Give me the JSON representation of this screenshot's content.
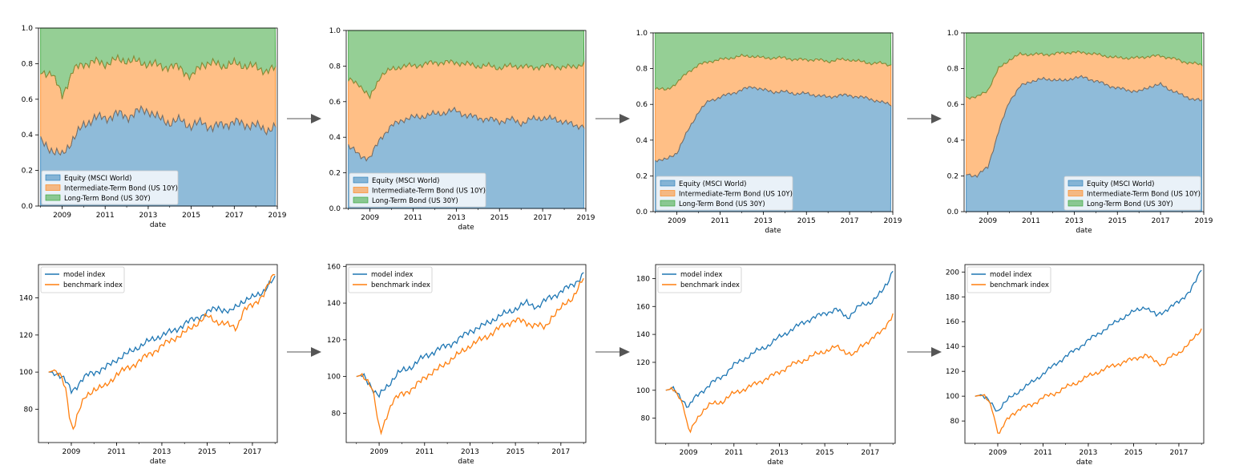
{
  "area_legend": [
    "Equity (MSCI World)",
    "Intermediate-Term Bond (US 10Y)",
    "Long-Term Bond (US 30Y)"
  ],
  "line_legend": [
    "model index",
    "benchmark index"
  ],
  "xlabel": "date",
  "colors": {
    "equity": "#1f77b4",
    "bond10": "#ff7f0e",
    "bond30": "#2ca02c",
    "model": "#1f77b4",
    "benchmark": "#ff7f0e",
    "arrow": "#555555"
  },
  "chart_data": [
    {
      "type": "area",
      "stacked": true,
      "legend_position": "lower-left",
      "x_ticks": [
        "2009",
        "2011",
        "2013",
        "2015",
        "2017",
        "2019"
      ],
      "y_ticks": [
        "0.0",
        "0.2",
        "0.4",
        "0.6",
        "0.8",
        "1.0"
      ],
      "xlim": [
        2007.9,
        2019.0
      ],
      "ylim": [
        0,
        1
      ],
      "series_anchors": {
        "x": [
          2008.0,
          2008.5,
          2009.0,
          2009.5,
          2010.0,
          2010.5,
          2011.0,
          2011.5,
          2012.0,
          2012.5,
          2013.0,
          2013.5,
          2014.0,
          2014.5,
          2015.0,
          2015.5,
          2016.0,
          2016.5,
          2017.0,
          2017.5,
          2018.0,
          2018.5,
          2018.9
        ],
        "equity": [
          0.36,
          0.32,
          0.28,
          0.38,
          0.45,
          0.5,
          0.49,
          0.52,
          0.5,
          0.53,
          0.54,
          0.49,
          0.47,
          0.48,
          0.45,
          0.47,
          0.44,
          0.46,
          0.47,
          0.46,
          0.45,
          0.43,
          0.44
        ],
        "equity_plus_bond10": [
          0.75,
          0.75,
          0.62,
          0.76,
          0.8,
          0.81,
          0.8,
          0.82,
          0.82,
          0.81,
          0.8,
          0.79,
          0.78,
          0.78,
          0.72,
          0.8,
          0.8,
          0.79,
          0.8,
          0.79,
          0.78,
          0.76,
          0.77
        ]
      }
    },
    {
      "type": "area",
      "stacked": true,
      "legend_position": "lower-left",
      "x_ticks": [
        "2009",
        "2011",
        "2013",
        "2015",
        "2017",
        "2019"
      ],
      "y_ticks": [
        "0.0",
        "0.2",
        "0.4",
        "0.6",
        "0.8",
        "1.0"
      ],
      "xlim": [
        2007.9,
        2019.0
      ],
      "ylim": [
        0,
        1
      ],
      "series_anchors": {
        "x": [
          2008.0,
          2008.5,
          2009.0,
          2009.5,
          2010.0,
          2010.5,
          2011.0,
          2011.5,
          2012.0,
          2012.5,
          2013.0,
          2013.5,
          2014.0,
          2014.5,
          2015.0,
          2015.5,
          2016.0,
          2016.5,
          2017.0,
          2017.5,
          2018.0,
          2018.5,
          2018.9
        ],
        "equity": [
          0.35,
          0.3,
          0.28,
          0.4,
          0.46,
          0.5,
          0.51,
          0.52,
          0.53,
          0.54,
          0.55,
          0.52,
          0.51,
          0.5,
          0.49,
          0.5,
          0.48,
          0.5,
          0.51,
          0.5,
          0.49,
          0.46,
          0.47
        ],
        "equity_plus_bond10": [
          0.72,
          0.7,
          0.62,
          0.75,
          0.78,
          0.8,
          0.8,
          0.81,
          0.82,
          0.82,
          0.82,
          0.81,
          0.8,
          0.8,
          0.79,
          0.8,
          0.8,
          0.79,
          0.8,
          0.8,
          0.79,
          0.8,
          0.81
        ]
      }
    },
    {
      "type": "area",
      "stacked": true,
      "legend_position": "lower-left",
      "x_ticks": [
        "2009",
        "2011",
        "2013",
        "2015",
        "2017",
        "2019"
      ],
      "y_ticks": [
        "0.0",
        "0.2",
        "0.4",
        "0.6",
        "0.8",
        "1.0"
      ],
      "xlim": [
        2007.9,
        2019.0
      ],
      "ylim": [
        0,
        1
      ],
      "series_anchors": {
        "x": [
          2008.0,
          2008.5,
          2009.0,
          2009.5,
          2010.0,
          2010.5,
          2011.0,
          2011.5,
          2012.0,
          2012.5,
          2013.0,
          2013.5,
          2014.0,
          2014.5,
          2015.0,
          2015.5,
          2016.0,
          2016.5,
          2017.0,
          2017.5,
          2018.0,
          2018.5,
          2018.9
        ],
        "equity": [
          0.29,
          0.29,
          0.33,
          0.45,
          0.56,
          0.62,
          0.64,
          0.66,
          0.68,
          0.7,
          0.68,
          0.67,
          0.67,
          0.66,
          0.66,
          0.65,
          0.64,
          0.65,
          0.65,
          0.64,
          0.63,
          0.61,
          0.6
        ],
        "equity_plus_bond10": [
          0.69,
          0.68,
          0.72,
          0.78,
          0.82,
          0.84,
          0.85,
          0.86,
          0.87,
          0.87,
          0.86,
          0.86,
          0.86,
          0.85,
          0.85,
          0.85,
          0.84,
          0.85,
          0.85,
          0.84,
          0.83,
          0.83,
          0.82
        ]
      }
    },
    {
      "type": "area",
      "stacked": true,
      "legend_position": "lower-right",
      "x_ticks": [
        "2009",
        "2011",
        "2013",
        "2015",
        "2017",
        "2019"
      ],
      "y_ticks": [
        "0.0",
        "0.2",
        "0.4",
        "0.6",
        "0.8",
        "1.0"
      ],
      "xlim": [
        2007.9,
        2019.0
      ],
      "ylim": [
        0,
        1
      ],
      "series_anchors": {
        "x": [
          2008.0,
          2008.5,
          2009.0,
          2009.5,
          2010.0,
          2010.5,
          2011.0,
          2011.5,
          2012.0,
          2012.5,
          2013.0,
          2013.5,
          2014.0,
          2014.5,
          2015.0,
          2015.5,
          2016.0,
          2016.5,
          2017.0,
          2017.5,
          2018.0,
          2018.5,
          2018.9
        ],
        "equity": [
          0.21,
          0.2,
          0.25,
          0.45,
          0.62,
          0.7,
          0.73,
          0.74,
          0.74,
          0.73,
          0.75,
          0.75,
          0.73,
          0.71,
          0.69,
          0.68,
          0.67,
          0.7,
          0.71,
          0.68,
          0.65,
          0.63,
          0.62
        ],
        "equity_plus_bond10": [
          0.64,
          0.64,
          0.68,
          0.8,
          0.85,
          0.88,
          0.88,
          0.88,
          0.88,
          0.89,
          0.89,
          0.89,
          0.88,
          0.87,
          0.86,
          0.86,
          0.86,
          0.87,
          0.87,
          0.86,
          0.84,
          0.83,
          0.82
        ]
      }
    },
    {
      "type": "line",
      "legend_position": "upper-left",
      "x_ticks": [
        "2009",
        "2011",
        "2013",
        "2015",
        "2017"
      ],
      "y_ticks": [
        "80",
        "100",
        "120",
        "140"
      ],
      "xlim": [
        2007.55,
        2018.1
      ],
      "ylim": [
        62,
        158
      ],
      "series": [
        {
          "name": "model index",
          "x": [
            2008.0,
            2008.3,
            2008.6,
            2008.8,
            2009.0,
            2009.2,
            2009.5,
            2009.8,
            2010.0,
            2010.5,
            2011.0,
            2011.5,
            2012.0,
            2012.5,
            2013.0,
            2013.5,
            2014.0,
            2014.5,
            2015.0,
            2015.5,
            2016.0,
            2016.5,
            2017.0,
            2017.5,
            2017.8,
            2018.0
          ],
          "values": [
            100,
            100,
            97,
            94,
            90,
            92,
            96,
            99,
            100,
            102,
            107,
            110,
            114,
            117,
            120,
            122,
            126,
            129,
            132,
            135,
            132,
            138,
            140,
            144,
            148,
            150
          ]
        },
        {
          "name": "benchmark index",
          "x": [
            2008.0,
            2008.3,
            2008.6,
            2008.8,
            2008.9,
            2009.0,
            2009.1,
            2009.3,
            2009.6,
            2010.0,
            2010.5,
            2011.0,
            2011.5,
            2012.0,
            2012.5,
            2013.0,
            2013.5,
            2014.0,
            2014.5,
            2015.0,
            2015.5,
            2016.0,
            2016.3,
            2016.6,
            2017.0,
            2017.5,
            2018.0
          ],
          "values": [
            100,
            101,
            96,
            88,
            78,
            72,
            70,
            78,
            86,
            91,
            92,
            99,
            102,
            106,
            110,
            114,
            118,
            121,
            126,
            130,
            127,
            125,
            124,
            133,
            136,
            142,
            154
          ]
        }
      ]
    },
    {
      "type": "line",
      "legend_position": "upper-left",
      "x_ticks": [
        "2009",
        "2011",
        "2013",
        "2015",
        "2017"
      ],
      "y_ticks": [
        "80",
        "100",
        "120",
        "140",
        "160"
      ],
      "xlim": [
        2007.55,
        2018.1
      ],
      "ylim": [
        64,
        161
      ],
      "series": [
        {
          "name": "model index",
          "x": [
            2008.0,
            2008.3,
            2008.6,
            2008.8,
            2009.0,
            2009.2,
            2009.5,
            2009.8,
            2010.0,
            2010.5,
            2011.0,
            2011.5,
            2012.0,
            2012.5,
            2013.0,
            2013.5,
            2014.0,
            2014.5,
            2015.0,
            2015.5,
            2016.0,
            2016.5,
            2017.0,
            2017.5,
            2017.8,
            2018.0
          ],
          "values": [
            100,
            101,
            96,
            91,
            89,
            93,
            97,
            101,
            103,
            106,
            111,
            114,
            117,
            120,
            125,
            127,
            131,
            134,
            137,
            140,
            138,
            143,
            146,
            150,
            153,
            156
          ]
        },
        {
          "name": "benchmark index",
          "x": [
            2008.0,
            2008.3,
            2008.6,
            2008.8,
            2008.9,
            2009.0,
            2009.1,
            2009.3,
            2009.6,
            2010.0,
            2010.5,
            2011.0,
            2011.5,
            2012.0,
            2012.5,
            2013.0,
            2013.5,
            2014.0,
            2014.5,
            2015.0,
            2015.5,
            2016.0,
            2016.3,
            2016.6,
            2017.0,
            2017.5,
            2018.0
          ],
          "values": [
            100,
            101,
            96,
            88,
            78,
            72,
            70,
            78,
            86,
            91,
            93,
            100,
            103,
            108,
            112,
            117,
            120,
            124,
            128,
            131,
            129,
            128,
            126,
            133,
            137,
            143,
            153
          ]
        }
      ]
    },
    {
      "type": "line",
      "legend_position": "upper-left",
      "x_ticks": [
        "2009",
        "2011",
        "2013",
        "2015",
        "2017"
      ],
      "y_ticks": [
        "80",
        "100",
        "120",
        "140",
        "160",
        "180"
      ],
      "xlim": [
        2007.55,
        2018.1
      ],
      "ylim": [
        62,
        190
      ],
      "series": [
        {
          "name": "model index",
          "x": [
            2008.0,
            2008.3,
            2008.6,
            2008.8,
            2009.0,
            2009.2,
            2009.5,
            2009.8,
            2010.0,
            2010.5,
            2011.0,
            2011.5,
            2012.0,
            2012.5,
            2013.0,
            2013.5,
            2014.0,
            2014.5,
            2015.0,
            2015.5,
            2016.0,
            2016.5,
            2017.0,
            2017.5,
            2017.8,
            2018.0
          ],
          "values": [
            100,
            101,
            96,
            92,
            88,
            93,
            98,
            102,
            105,
            110,
            118,
            123,
            128,
            132,
            138,
            143,
            148,
            152,
            155,
            158,
            152,
            160,
            163,
            170,
            178,
            187
          ]
        },
        {
          "name": "benchmark index",
          "x": [
            2008.0,
            2008.3,
            2008.6,
            2008.8,
            2008.9,
            2009.0,
            2009.1,
            2009.3,
            2009.6,
            2010.0,
            2010.5,
            2011.0,
            2011.5,
            2012.0,
            2012.5,
            2013.0,
            2013.5,
            2014.0,
            2014.5,
            2015.0,
            2015.5,
            2016.0,
            2016.3,
            2016.6,
            2017.0,
            2017.5,
            2018.0
          ],
          "values": [
            100,
            101,
            96,
            88,
            78,
            72,
            70,
            78,
            85,
            90,
            92,
            98,
            101,
            105,
            109,
            113,
            118,
            121,
            125,
            128,
            131,
            127,
            125,
            132,
            136,
            142,
            154
          ]
        }
      ]
    },
    {
      "type": "line",
      "legend_position": "upper-left",
      "x_ticks": [
        "2009",
        "2011",
        "2013",
        "2015",
        "2017"
      ],
      "y_ticks": [
        "80",
        "100",
        "120",
        "140",
        "160",
        "180",
        "200"
      ],
      "xlim": [
        2007.55,
        2018.1
      ],
      "ylim": [
        62,
        206
      ],
      "series": [
        {
          "name": "model index",
          "x": [
            2008.0,
            2008.3,
            2008.6,
            2008.8,
            2009.0,
            2009.2,
            2009.5,
            2009.8,
            2010.0,
            2010.5,
            2011.0,
            2011.5,
            2012.0,
            2012.5,
            2013.0,
            2013.5,
            2014.0,
            2014.5,
            2015.0,
            2015.5,
            2016.0,
            2016.5,
            2017.0,
            2017.5,
            2017.8,
            2018.0
          ],
          "values": [
            100,
            101,
            96,
            92,
            88,
            93,
            98,
            102,
            105,
            111,
            118,
            125,
            132,
            138,
            145,
            151,
            157,
            163,
            168,
            172,
            165,
            170,
            176,
            185,
            194,
            203
          ]
        },
        {
          "name": "benchmark index",
          "x": [
            2008.0,
            2008.3,
            2008.6,
            2008.8,
            2008.9,
            2009.0,
            2009.1,
            2009.3,
            2009.6,
            2010.0,
            2010.5,
            2011.0,
            2011.5,
            2012.0,
            2012.5,
            2013.0,
            2013.5,
            2014.0,
            2014.5,
            2015.0,
            2015.5,
            2016.0,
            2016.3,
            2016.6,
            2017.0,
            2017.5,
            2018.0
          ],
          "values": [
            100,
            101,
            96,
            88,
            78,
            72,
            70,
            78,
            85,
            90,
            93,
            99,
            102,
            107,
            111,
            116,
            120,
            124,
            127,
            130,
            133,
            128,
            125,
            131,
            135,
            143,
            154
          ]
        }
      ]
    }
  ]
}
